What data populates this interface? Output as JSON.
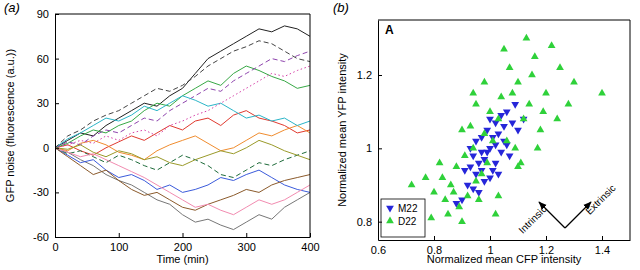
{
  "chart_data": [
    {
      "type": "line",
      "title": "(a)",
      "x_label": "Time (min)",
      "y_label": "GFP noise (fluorescence (a.u.))",
      "x": [
        0,
        20,
        40,
        60,
        80,
        100,
        120,
        140,
        160,
        180,
        200,
        220,
        240,
        260,
        280,
        300,
        320,
        340,
        360,
        380,
        400
      ],
      "xlim": [
        0,
        400
      ],
      "xticks": [
        0,
        100,
        200,
        300,
        400
      ],
      "ylim": [
        -60,
        90
      ],
      "yticks": [
        -60,
        -30,
        0,
        30,
        60,
        90
      ],
      "series": [
        {
          "color": "#222222",
          "line_style": "solid",
          "values": [
            0,
            5,
            10,
            8,
            15,
            20,
            25,
            30,
            28,
            35,
            40,
            50,
            60,
            65,
            70,
            75,
            80,
            78,
            82,
            80,
            75
          ]
        },
        {
          "color": "#777777",
          "line_style": "solid",
          "values": [
            0,
            -3,
            -8,
            -12,
            -18,
            -22,
            -25,
            -30,
            -35,
            -38,
            -45,
            -50,
            -48,
            -52,
            -55,
            -50,
            -45,
            -48,
            -40,
            -35,
            -30
          ]
        },
        {
          "color": "#e03a2f",
          "line_style": "solid",
          "values": [
            0,
            2,
            -2,
            -5,
            0,
            4,
            8,
            5,
            10,
            15,
            12,
            18,
            20,
            15,
            22,
            25,
            20,
            18,
            15,
            10,
            12
          ]
        },
        {
          "color": "#3b5bdb",
          "line_style": "solid",
          "values": [
            0,
            -5,
            -10,
            -8,
            -15,
            -20,
            -18,
            -22,
            -28,
            -25,
            -30,
            -28,
            -25,
            -20,
            -22,
            -18,
            -15,
            -20,
            -25,
            -28,
            -30
          ]
        },
        {
          "color": "#37a845",
          "line_style": "solid",
          "values": [
            0,
            3,
            8,
            12,
            10,
            15,
            18,
            25,
            30,
            28,
            35,
            40,
            45,
            42,
            50,
            55,
            52,
            48,
            45,
            40,
            42
          ]
        },
        {
          "color": "#f08c2e",
          "line_style": "solid",
          "values": [
            0,
            -2,
            3,
            5,
            2,
            -3,
            -5,
            -8,
            -2,
            2,
            5,
            8,
            3,
            -2,
            0,
            5,
            10,
            8,
            12,
            15,
            10
          ]
        },
        {
          "color": "#8e44ad",
          "line_style": "dashed",
          "values": [
            0,
            4,
            2,
            8,
            12,
            10,
            15,
            20,
            18,
            25,
            30,
            35,
            40,
            38,
            45,
            50,
            55,
            60,
            58,
            62,
            65
          ]
        },
        {
          "color": "#1e6b3a",
          "line_style": "dashed",
          "values": [
            0,
            -4,
            -2,
            -6,
            -10,
            -5,
            -8,
            -12,
            -15,
            -10,
            -5,
            -8,
            -12,
            -18,
            -20,
            -15,
            -10,
            -12,
            -8,
            -5,
            -2
          ]
        },
        {
          "color": "#2bb5c8",
          "line_style": "solid",
          "values": [
            0,
            6,
            10,
            15,
            20,
            18,
            22,
            28,
            25,
            30,
            35,
            32,
            28,
            30,
            25,
            20,
            22,
            18,
            20,
            15,
            18
          ]
        },
        {
          "color": "#8b5a2b",
          "line_style": "solid",
          "values": [
            0,
            -6,
            -12,
            -18,
            -15,
            -22,
            -28,
            -32,
            -30,
            -35,
            -40,
            -42,
            -38,
            -35,
            -32,
            -28,
            -30,
            -25,
            -22,
            -20,
            -18
          ]
        },
        {
          "color": "#d63fa8",
          "line_style": "dotted",
          "values": [
            0,
            2,
            5,
            3,
            8,
            5,
            10,
            12,
            8,
            15,
            18,
            22,
            25,
            30,
            35,
            40,
            45,
            50,
            48,
            52,
            55
          ]
        },
        {
          "color": "#9a9a2a",
          "line_style": "solid",
          "values": [
            0,
            -1,
            2,
            -3,
            -6,
            -2,
            -4,
            -8,
            -6,
            -10,
            -12,
            -8,
            -5,
            -2,
            -4,
            0,
            5,
            2,
            -2,
            -5,
            -8
          ]
        },
        {
          "color": "#444444",
          "line_style": "dashed",
          "values": [
            0,
            8,
            12,
            18,
            22,
            25,
            30,
            35,
            40,
            38,
            42,
            48,
            55,
            60,
            65,
            68,
            72,
            70,
            65,
            60,
            58
          ]
        },
        {
          "color": "#f28bb0",
          "line_style": "solid",
          "values": [
            0,
            -3,
            -6,
            -4,
            -8,
            -12,
            -16,
            -20,
            -25,
            -30,
            -35,
            -40,
            -38,
            -42,
            -45,
            -40,
            -35,
            -38,
            -35,
            -30,
            -25
          ]
        }
      ]
    },
    {
      "type": "scatter",
      "title": "(b)",
      "x_label": "Normalized mean CFP intensity",
      "y_label": "Normalized mean YFP intensity",
      "xlim": [
        0.6,
        1.5
      ],
      "xticks": [
        0.6,
        0.8,
        1,
        1.2,
        1.4
      ],
      "ylim": [
        0.75,
        1.35
      ],
      "yticks": [
        0.8,
        1,
        1.2
      ],
      "legend": "lower left",
      "annotations": [
        {
          "text": "A"
        },
        {
          "text": "Intrinsic"
        },
        {
          "text": "Extrinsic"
        }
      ],
      "series": [
        {
          "name": "M22",
          "color": "#2626d9",
          "marker": "triangle-down",
          "x": [
            1.0,
            0.98,
            1.03,
            0.95,
            1.05,
            0.97,
            1.02,
            0.92,
            1.08,
            0.99,
            1.01,
            0.94,
            1.06,
            0.96,
            1.04,
            0.9,
            1.1,
            1.0,
            0.93,
            1.07,
            0.98,
            1.02,
            0.97,
            1.03,
            0.95,
            1.09,
            0.91,
            1.0,
            1.05,
            0.99,
            0.96,
            1.04,
            0.94,
            1.12,
            0.88,
            1.01,
            0.97,
            1.06,
            0.93,
            1.02
          ],
          "values": [
            1.0,
            0.97,
            1.04,
            0.93,
            1.02,
            1.03,
            0.96,
            0.9,
            1.07,
            1.05,
            0.94,
            0.98,
            1.1,
            0.88,
            0.99,
            0.86,
            1.05,
            1.08,
            0.95,
            0.98,
            0.91,
            1.01,
            0.99,
            0.93,
            1.02,
            1.12,
            0.94,
            0.92,
            1.06,
            0.99,
            0.96,
            1.09,
            0.89,
            1.08,
            0.85,
            1.03,
            0.94,
            1.01,
            1.0,
            1.07
          ]
        },
        {
          "name": "D22",
          "color": "#2fd13a",
          "marker": "triangle-up",
          "x": [
            0.85,
            1.15,
            0.9,
            1.1,
            0.8,
            1.2,
            0.95,
            1.03,
            0.88,
            1.12,
            0.79,
            1.25,
            0.92,
            1.08,
            0.98,
            1.02,
            0.83,
            1.18,
            0.94,
            1.06,
            0.86,
            1.14,
            0.97,
            1.03,
            0.89,
            1.22,
            0.77,
            1.3,
            0.91,
            1.09,
            1.0,
            0.96,
            1.04,
            0.82,
            1.16,
            0.93,
            1.11,
            0.87,
            1.13,
            1.4,
            0.99,
            1.01,
            0.84,
            1.07,
            0.95,
            1.19,
            0.9,
            1.1,
            1.28,
            0.72,
            1.05,
            0.94,
            1.17,
            0.98,
            1.24
          ],
          "values": [
            0.82,
            1.2,
            1.05,
            0.95,
            0.88,
            1.15,
            1.12,
            0.87,
            0.95,
            1.08,
            0.81,
            1.22,
            0.87,
            1.15,
            1.18,
            0.82,
            0.92,
            1.05,
            1.0,
            1.02,
            0.9,
            1.12,
            0.93,
            1.08,
            0.84,
            1.28,
            0.92,
            1.18,
            0.98,
            1.0,
            1.1,
            0.86,
            1.14,
            0.96,
            1.25,
            1.06,
            0.96,
            0.88,
            1.3,
            1.15,
            0.96,
            1.02,
            0.86,
            1.22,
            0.91,
            1.1,
            0.8,
            1.18,
            1.12,
            0.9,
            1.27,
            1.15,
            1.0,
            1.04,
            1.08
          ]
        }
      ]
    }
  ]
}
